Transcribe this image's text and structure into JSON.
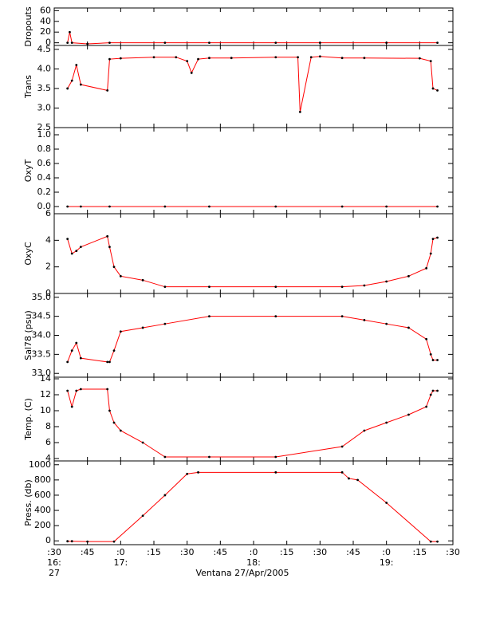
{
  "chart_data": [
    {
      "type": "line",
      "ylabel": "Dropouts",
      "ylim": [
        -5,
        65
      ],
      "yticks": [
        0,
        20,
        40,
        60
      ],
      "color": "#ff0000",
      "marker_color": "#000000",
      "x": [
        36,
        37,
        38,
        45,
        55,
        80,
        100,
        130,
        150,
        180,
        203
      ],
      "values": [
        0,
        20,
        0,
        -2,
        0,
        0,
        0,
        0,
        0,
        0,
        0
      ]
    },
    {
      "type": "line",
      "ylabel": "Trans",
      "ylim": [
        2.5,
        4.6
      ],
      "yticks": [
        2.5,
        {
          "value": 3,
          "label": "3.0"
        },
        3.5,
        {
          "value": 4,
          "label": "4.0"
        },
        4.5
      ],
      "color": "#ff0000",
      "marker_color": "#000000",
      "x": [
        36,
        38,
        40,
        42,
        54,
        55,
        60,
        75,
        85,
        90,
        92,
        95,
        100,
        110,
        130,
        140,
        141,
        146,
        150,
        160,
        170,
        195,
        200,
        201,
        203
      ],
      "values": [
        3.5,
        3.7,
        4.1,
        3.6,
        3.45,
        4.25,
        4.27,
        4.3,
        4.3,
        4.2,
        3.9,
        4.25,
        4.28,
        4.28,
        4.3,
        4.3,
        2.9,
        4.3,
        4.32,
        4.28,
        4.28,
        4.27,
        4.2,
        3.5,
        3.45
      ]
    },
    {
      "type": "line",
      "ylabel": "OxyT",
      "ylim": [
        -0.1,
        1.1
      ],
      "yticks": [
        {
          "value": 0,
          "label": "0.0"
        },
        0.2,
        0.4,
        0.6,
        0.8,
        {
          "value": 1,
          "label": "1.0"
        }
      ],
      "color": "#ff0000",
      "marker_color": "#000000",
      "x": [
        36,
        42,
        55,
        80,
        100,
        130,
        160,
        180,
        203
      ],
      "values": [
        0,
        0,
        0,
        0,
        0,
        0,
        0,
        0,
        0
      ]
    },
    {
      "type": "line",
      "ylabel": "OxyC",
      "ylim": [
        0,
        6
      ],
      "yticks": [
        0,
        2,
        4,
        6
      ],
      "color": "#ff0000",
      "marker_color": "#000000",
      "x": [
        36,
        38,
        40,
        42,
        54,
        55,
        57,
        60,
        70,
        80,
        100,
        130,
        160,
        170,
        180,
        190,
        198,
        200,
        201,
        203
      ],
      "values": [
        4.1,
        3.0,
        3.2,
        3.5,
        4.3,
        3.5,
        2.0,
        1.3,
        1.0,
        0.5,
        0.5,
        0.5,
        0.5,
        0.6,
        0.9,
        1.3,
        1.9,
        3.0,
        4.1,
        4.2
      ]
    },
    {
      "type": "line",
      "ylabel": "Sal78 (psu)",
      "ylim": [
        32.9,
        35.1
      ],
      "yticks": [
        {
          "value": 33,
          "label": "33.0"
        },
        33.5,
        {
          "value": 34,
          "label": "34.0"
        },
        34.5,
        {
          "value": 35,
          "label": "35.0"
        }
      ],
      "color": "#ff0000",
      "marker_color": "#000000",
      "x": [
        36,
        38,
        40,
        42,
        54,
        55,
        57,
        60,
        70,
        80,
        100,
        130,
        160,
        170,
        180,
        190,
        198,
        200,
        201,
        203
      ],
      "values": [
        33.3,
        33.6,
        33.8,
        33.4,
        33.3,
        33.3,
        33.6,
        34.1,
        34.2,
        34.3,
        34.5,
        34.5,
        34.5,
        34.4,
        34.3,
        34.2,
        33.9,
        33.5,
        33.35,
        33.35
      ]
    },
    {
      "type": "line",
      "ylabel": "Temp. (C)",
      "ylim": [
        3.7,
        14.2
      ],
      "yticks": [
        4,
        6,
        8,
        10,
        12,
        14
      ],
      "color": "#ff0000",
      "marker_color": "#000000",
      "x": [
        36,
        38,
        40,
        42,
        54,
        55,
        57,
        60,
        70,
        80,
        100,
        130,
        160,
        170,
        180,
        190,
        198,
        200,
        201,
        203
      ],
      "values": [
        12.5,
        10.5,
        12.5,
        12.7,
        12.7,
        10,
        8.5,
        7.5,
        6.0,
        4.2,
        4.2,
        4.2,
        5.5,
        7.5,
        8.5,
        9.5,
        10.5,
        12.0,
        12.5,
        12.5
      ]
    },
    {
      "type": "line",
      "ylabel": "Press. (db)",
      "ylim": [
        -50,
        1050
      ],
      "yticks": [
        0,
        200,
        400,
        600,
        800,
        1000
      ],
      "color": "#ff0000",
      "marker_color": "#000000",
      "x": [
        36,
        38,
        45,
        57,
        70,
        80,
        90,
        95,
        130,
        160,
        163,
        167,
        180,
        200,
        203
      ],
      "values": [
        -5,
        -5,
        -10,
        -10,
        330,
        600,
        880,
        900,
        900,
        900,
        820,
        800,
        500,
        -10,
        -10
      ],
      "xlim": [
        30,
        210
      ],
      "xticks": [
        {
          "value": 30,
          "label": ":30"
        },
        {
          "value": 45,
          "label": ":45"
        },
        {
          "value": 60,
          "label": ":0"
        },
        {
          "value": 75,
          "label": ":15"
        },
        {
          "value": 90,
          "label": ":30"
        },
        {
          "value": 105,
          "label": ":45"
        },
        {
          "value": 120,
          "label": ":0"
        },
        {
          "value": 135,
          "label": ":15"
        },
        {
          "value": 150,
          "label": ":30"
        },
        {
          "value": 165,
          "label": ":45"
        },
        {
          "value": 180,
          "label": ":0"
        },
        {
          "value": 195,
          "label": ":15"
        },
        {
          "value": 210,
          "label": ":30"
        }
      ],
      "hour_labels": [
        {
          "value": 30,
          "label": "16:"
        },
        {
          "value": 60,
          "label": "17:"
        },
        {
          "value": 120,
          "label": "18:"
        },
        {
          "value": 180,
          "label": "19:"
        }
      ],
      "day_label": {
        "value": 30,
        "label": "27"
      },
      "xlabel": "Ventana 27/Apr/2005"
    }
  ]
}
